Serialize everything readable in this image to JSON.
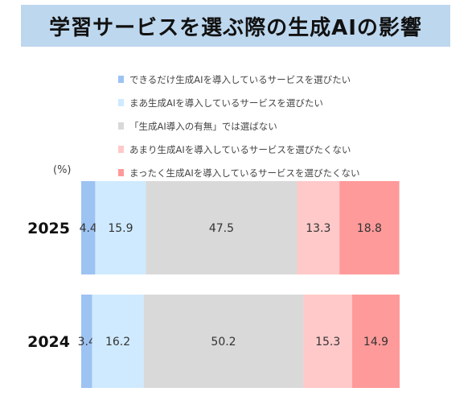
{
  "title": "学習サービスを選ぶ際の生成AIの影響",
  "unit_label": "(%)",
  "chart_data": {
    "type": "bar",
    "orientation": "horizontal",
    "stacked": "100%",
    "title": "学習サービスを選ぶ際の生成AIの影響",
    "xlim": [
      0,
      100
    ],
    "legend_position": "top",
    "categories": [
      "2025",
      "2024"
    ],
    "series": [
      {
        "name": "できるだけ生成AIを導入しているサービスを選びたい",
        "color": "#9dc3f2",
        "values": [
          4.4,
          3.4
        ]
      },
      {
        "name": "まあ生成AIを導入しているサービスを選びたい",
        "color": "#cfeaff",
        "values": [
          15.9,
          16.2
        ]
      },
      {
        "name": "「生成AI導入の有無」では選ばない",
        "color": "#d9d9d9",
        "values": [
          47.5,
          50.2
        ]
      },
      {
        "name": "あまり生成AIを導入しているサービスを選びたくない",
        "color": "#ffc9c9",
        "values": [
          13.3,
          15.3
        ]
      },
      {
        "name": "まったく生成AIを導入しているサービスを選びたくない",
        "color": "#ff9a9a",
        "values": [
          18.8,
          14.9
        ]
      }
    ]
  }
}
